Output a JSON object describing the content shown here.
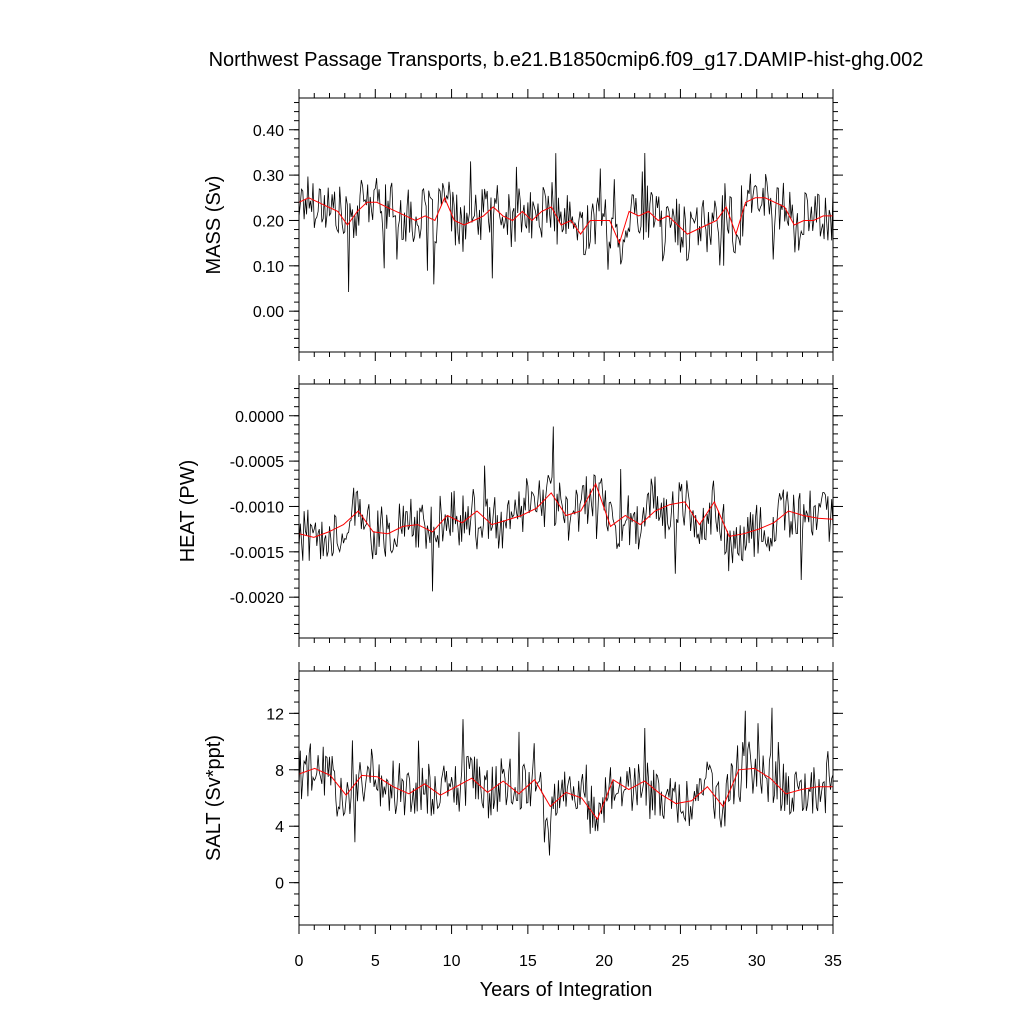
{
  "title": "Northwest Passage Transports, b.e21.B1850cmip6.f09_g17.DAMIP-hist-ghg.002",
  "xlabel": "Years of Integration",
  "colors": {
    "monthly": "#000000",
    "annual": "#ff0000"
  },
  "chart_data": [
    {
      "type": "line",
      "ylabel": "MASS (Sv)",
      "xlim": [
        0,
        35
      ],
      "ylim": [
        -0.09,
        0.47
      ],
      "xticks": [
        "0",
        "5",
        "10",
        "15",
        "20",
        "25",
        "30",
        "35"
      ],
      "yticks": [
        "0.00",
        "0.10",
        "0.20",
        "0.30",
        "0.40"
      ],
      "series": [
        {
          "values": [
            0.24,
            0.25,
            0.24,
            0.23,
            0.22,
            0.19,
            0.22,
            0.24,
            0.24,
            0.23,
            0.22,
            0.21,
            0.2,
            0.21,
            0.2,
            0.25,
            0.2,
            0.19,
            0.2,
            0.21,
            0.23,
            0.21,
            0.2,
            0.22,
            0.2,
            0.22,
            0.23,
            0.19,
            0.2,
            0.17,
            0.2,
            0.2,
            0.2,
            0.15,
            0.22,
            0.21,
            0.22,
            0.2,
            0.21,
            0.19,
            0.17,
            0.18,
            0.19,
            0.2,
            0.23,
            0.17,
            0.24,
            0.25,
            0.25,
            0.24,
            0.23,
            0.19,
            0.2,
            0.2,
            0.21,
            0.21
          ]
        }
      ]
    },
    {
      "type": "line",
      "ylabel": "HEAT (PW)",
      "xlim": [
        0,
        35
      ],
      "ylim": [
        -0.00245,
        0.00035
      ],
      "xticks": [
        "0",
        "5",
        "10",
        "15",
        "20",
        "25",
        "30",
        "35"
      ],
      "yticks": [
        "0.0000",
        "-0.0005",
        "-0.0010",
        "-0.0015",
        "-0.0020"
      ],
      "series": [
        {
          "values": [
            -0.0013,
            -0.00134,
            -0.00128,
            -0.0012,
            -0.00105,
            -0.00128,
            -0.0013,
            -0.00122,
            -0.0012,
            -0.00128,
            -0.0011,
            -0.00118,
            -0.00105,
            -0.0012,
            -0.00115,
            -0.0011,
            -0.00102,
            -0.00085,
            -0.0011,
            -0.00105,
            -0.00075,
            -0.00122,
            -0.0011,
            -0.0012,
            -0.00105,
            -0.00098,
            -0.00095,
            -0.0012,
            -0.00095,
            -0.00133,
            -0.0013,
            -0.00125,
            -0.00118,
            -0.00105,
            -0.0011,
            -0.00113,
            -0.00114
          ]
        }
      ]
    },
    {
      "type": "line",
      "ylabel": "SALT (Sv*ppt)",
      "xlim": [
        0,
        35
      ],
      "ylim": [
        -3,
        15
      ],
      "xticks": [
        "0",
        "5",
        "10",
        "15",
        "20",
        "25",
        "30",
        "35"
      ],
      "yticks": [
        "0",
        "4",
        "8",
        "12"
      ],
      "series": [
        {
          "values": [
            7.7,
            8.1,
            7.6,
            6.2,
            7.6,
            7.5,
            6.8,
            6.3,
            7.0,
            6.2,
            6.8,
            7.4,
            6.4,
            7.2,
            6.3,
            7.3,
            5.4,
            6.4,
            6.0,
            4.5,
            7.3,
            6.6,
            7.2,
            6.3,
            5.6,
            5.8,
            6.8,
            5.4,
            8.0,
            8.1,
            7.4,
            6.3,
            6.6,
            6.8,
            6.8
          ]
        }
      ]
    }
  ]
}
